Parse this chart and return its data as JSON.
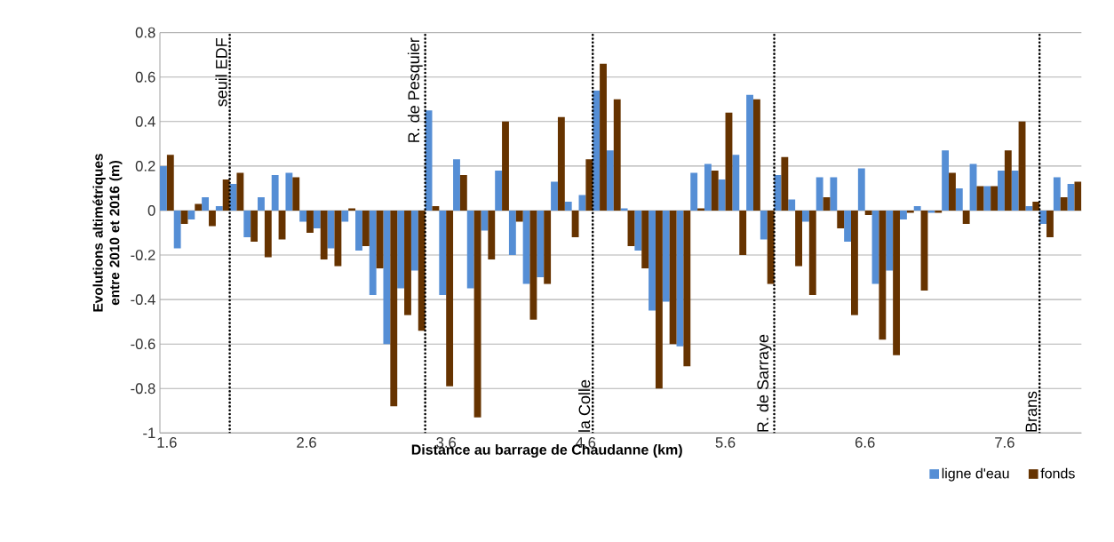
{
  "chart_data": {
    "type": "bar",
    "xlabel": "Distance au barrage de Chaudanne (km)",
    "ylabel": "Evolutions altimétriques entre 2010 et 2016 (m)",
    "x": [
      1.6,
      1.7,
      1.8,
      1.9,
      2.0,
      2.1,
      2.2,
      2.3,
      2.4,
      2.5,
      2.6,
      2.7,
      2.8,
      2.9,
      3.0,
      3.1,
      3.2,
      3.3,
      3.4,
      3.5,
      3.6,
      3.7,
      3.8,
      3.9,
      4.0,
      4.1,
      4.2,
      4.3,
      4.4,
      4.5,
      4.6,
      4.7,
      4.8,
      4.9,
      5.0,
      5.1,
      5.2,
      5.3,
      5.4,
      5.5,
      5.6,
      5.7,
      5.8,
      5.9,
      6.0,
      6.1,
      6.2,
      6.3,
      6.4,
      6.5,
      6.6,
      6.7,
      6.8,
      6.9,
      7.0,
      7.1,
      7.2,
      7.3,
      7.4,
      7.5,
      7.6,
      7.7,
      7.8,
      7.9,
      8.0,
      8.1
    ],
    "series": [
      {
        "name": "ligne d'eau",
        "color": "#558ed5",
        "values": [
          0.2,
          -0.17,
          -0.04,
          0.06,
          0.02,
          0.12,
          -0.12,
          0.06,
          0.16,
          0.17,
          -0.05,
          -0.08,
          -0.17,
          -0.05,
          -0.18,
          -0.38,
          -0.6,
          -0.35,
          -0.27,
          0.45,
          -0.38,
          0.23,
          -0.35,
          -0.09,
          0.18,
          -0.2,
          -0.33,
          -0.3,
          0.13,
          0.04,
          0.07,
          0.54,
          0.27,
          0.01,
          -0.18,
          -0.45,
          -0.41,
          -0.61,
          0.17,
          0.21,
          0.14,
          0.25,
          0.52,
          -0.13,
          0.16,
          0.05,
          -0.05,
          0.15,
          0.15,
          -0.14,
          0.19,
          -0.33,
          -0.27,
          -0.04,
          0.02,
          -0.01,
          0.27,
          0.1,
          0.21,
          0.11,
          0.18,
          0.18,
          0.02,
          -0.06,
          0.15,
          0.12
        ]
      },
      {
        "name": "fonds",
        "color": "#663300",
        "values": [
          0.25,
          -0.06,
          0.03,
          -0.07,
          0.14,
          0.17,
          -0.14,
          -0.21,
          -0.13,
          0.15,
          -0.1,
          -0.22,
          -0.25,
          0.01,
          -0.16,
          -0.26,
          -0.88,
          -0.47,
          -0.54,
          0.02,
          -0.79,
          0.16,
          -0.93,
          -0.22,
          0.4,
          -0.05,
          -0.49,
          -0.33,
          0.42,
          -0.12,
          0.23,
          0.66,
          0.5,
          -0.16,
          -0.26,
          -0.8,
          -0.6,
          -0.7,
          0.01,
          0.18,
          0.44,
          -0.2,
          0.5,
          -0.33,
          0.24,
          -0.25,
          -0.38,
          0.06,
          -0.08,
          -0.47,
          -0.02,
          -0.58,
          -0.65,
          -0.01,
          -0.36,
          -0.01,
          0.17,
          -0.06,
          0.11,
          0.11,
          0.27,
          0.4,
          0.04,
          -0.12,
          0.06,
          0.13
        ]
      }
    ],
    "xlim": [
      1.55,
      8.15
    ],
    "xticks": [
      1.6,
      2.6,
      3.6,
      4.6,
      5.6,
      6.6,
      7.6
    ],
    "ylim": [
      -1,
      0.8
    ],
    "yticks": [
      -1,
      -0.8,
      -0.6,
      -0.4,
      -0.2,
      0,
      0.2,
      0.4,
      0.6,
      0.8
    ],
    "grid": "y",
    "legend": "bottom right",
    "ref_lines": [
      {
        "axis": "x",
        "value": 2.05,
        "label": "seuil EDF",
        "line_style": "dotted"
      },
      {
        "axis": "x",
        "value": 3.45,
        "label": "R. de Pesquier",
        "line_style": "dotted"
      },
      {
        "axis": "x",
        "value": 4.65,
        "label": "la Colle",
        "line_style": "dotted"
      },
      {
        "axis": "x",
        "value": 5.95,
        "label": "R. de Sarraye",
        "line_style": "dotted"
      },
      {
        "axis": "x",
        "value": 7.85,
        "label": "Brans",
        "line_style": "dotted"
      }
    ]
  }
}
